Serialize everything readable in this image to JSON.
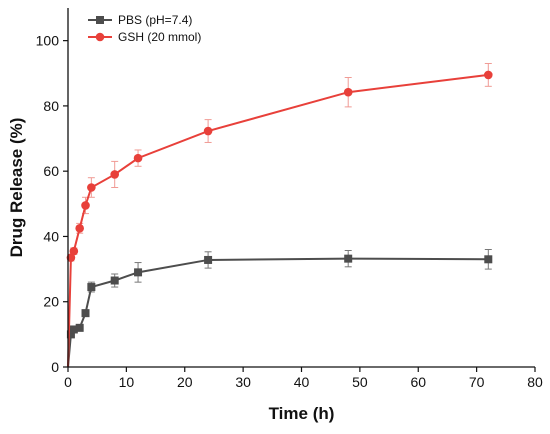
{
  "chart_data": {
    "type": "line",
    "title": "",
    "xlabel": "Time (h)",
    "ylabel": "Drug Release (%)",
    "xlim": [
      0,
      80
    ],
    "ylim": [
      0,
      110
    ],
    "xticks": [
      0,
      10,
      20,
      30,
      40,
      50,
      60,
      70,
      80
    ],
    "yticks": [
      0,
      20,
      40,
      60,
      80,
      100
    ],
    "grid": false,
    "legend_position": "top-left",
    "series": [
      {
        "name": "PBS (pH=7.4)",
        "color": "#4d4d4d",
        "marker": "square",
        "x": [
          0,
          0.5,
          1,
          2,
          3,
          4,
          8,
          12,
          24,
          48,
          72
        ],
        "y": [
          0,
          10,
          11.5,
          12,
          16.5,
          24.5,
          26.5,
          29,
          32.8,
          33.2,
          33
        ],
        "error": [
          0,
          1,
          1,
          1,
          1,
          1.5,
          2,
          3,
          2.5,
          2.5,
          3
        ]
      },
      {
        "name": "GSH (20 mmol)",
        "color": "#e8403a",
        "marker": "circle",
        "x": [
          0,
          0.5,
          1,
          2,
          3,
          4,
          8,
          12,
          24,
          48,
          72
        ],
        "y": [
          0,
          33.5,
          35.5,
          42.5,
          49.5,
          55,
          59,
          64,
          72.3,
          84.2,
          89.5
        ],
        "error": [
          0,
          1,
          1,
          1.5,
          2.5,
          3,
          4,
          2.5,
          3.5,
          4.5,
          3.5
        ]
      }
    ]
  }
}
